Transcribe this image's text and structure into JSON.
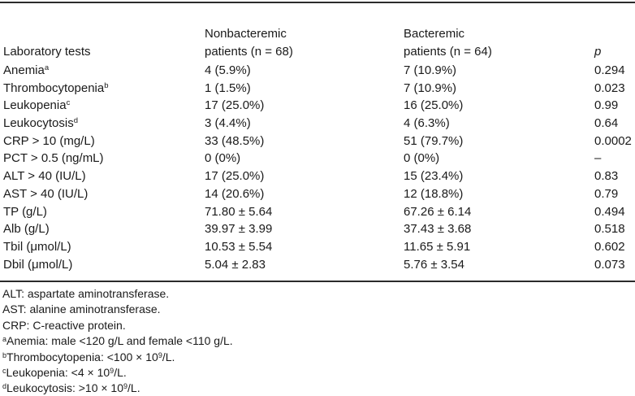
{
  "table": {
    "header": {
      "col1": "Laboratory tests",
      "col2_line1": "Nonbacteremic",
      "col2_line2": "patients (n = 68)",
      "col3_line1": "Bacteremic",
      "col3_line2": "patients (n = 64)",
      "col4": "p"
    },
    "rows": [
      {
        "test": "Anemia",
        "sup": "a",
        "nonbacteremic": "4 (5.9%)",
        "bacteremic": "7 (10.9%)",
        "p": "0.294"
      },
      {
        "test": "Thrombocytopenia",
        "sup": "b",
        "nonbacteremic": "1 (1.5%)",
        "bacteremic": "7 (10.9%)",
        "p": "0.023"
      },
      {
        "test": "Leukopenia",
        "sup": "c",
        "nonbacteremic": "17 (25.0%)",
        "bacteremic": "16 (25.0%)",
        "p": "0.99"
      },
      {
        "test": "Leukocytosis",
        "sup": "d",
        "nonbacteremic": "3 (4.4%)",
        "bacteremic": "4 (6.3%)",
        "p": "0.64"
      },
      {
        "test": "CRP > 10 (mg/L)",
        "nonbacteremic": "33 (48.5%)",
        "bacteremic": "51 (79.7%)",
        "p": "0.0002"
      },
      {
        "test": "PCT > 0.5 (ng/mL)",
        "nonbacteremic": "0 (0%)",
        "bacteremic": "0 (0%)",
        "p": "–"
      },
      {
        "test": "ALT > 40 (IU/L)",
        "nonbacteremic": "17 (25.0%)",
        "bacteremic": "15 (23.4%)",
        "p": "0.83"
      },
      {
        "test": "AST > 40 (IU/L)",
        "nonbacteremic": "14 (20.6%)",
        "bacteremic": "12 (18.8%)",
        "p": "0.79"
      },
      {
        "test": "TP (g/L)",
        "nonbacteremic": "71.80 ± 5.64",
        "bacteremic": "67.26 ± 6.14",
        "p": "0.494"
      },
      {
        "test": "Alb (g/L)",
        "nonbacteremic": "39.97 ± 3.99",
        "bacteremic": "37.43 ± 3.68",
        "p": "0.518"
      },
      {
        "test": "Tbil (μmol/L)",
        "nonbacteremic": "10.53 ± 5.54",
        "bacteremic": "11.65 ± 5.91",
        "p": "0.602"
      },
      {
        "test": "Dbil (μmol/L)",
        "nonbacteremic": "5.04 ± 2.83",
        "bacteremic": "5.76 ± 3.54",
        "p": "0.073"
      }
    ]
  },
  "footnotes": [
    {
      "text": "ALT: aspartate aminotransferase."
    },
    {
      "text": "AST: alanine aminotransferase."
    },
    {
      "text": "CRP: C-reactive protein."
    },
    {
      "sup": "a",
      "text": "Anemia: male <120 g/L and female <110 g/L."
    },
    {
      "sup": "b",
      "text": "Thrombocytopenia: <100 × 10",
      "sup_exp": "9",
      "tail": "/L."
    },
    {
      "sup": "c",
      "text": "Leukopenia: <4 × 10",
      "sup_exp": "9",
      "tail": "/L."
    },
    {
      "sup": "d",
      "text": "Leukocytosis: >10 × 10",
      "sup_exp": "9",
      "tail": "/L."
    }
  ],
  "colors": {
    "text": "#1a1a1a",
    "rule": "#2b2b2b",
    "background": "#ffffff"
  }
}
